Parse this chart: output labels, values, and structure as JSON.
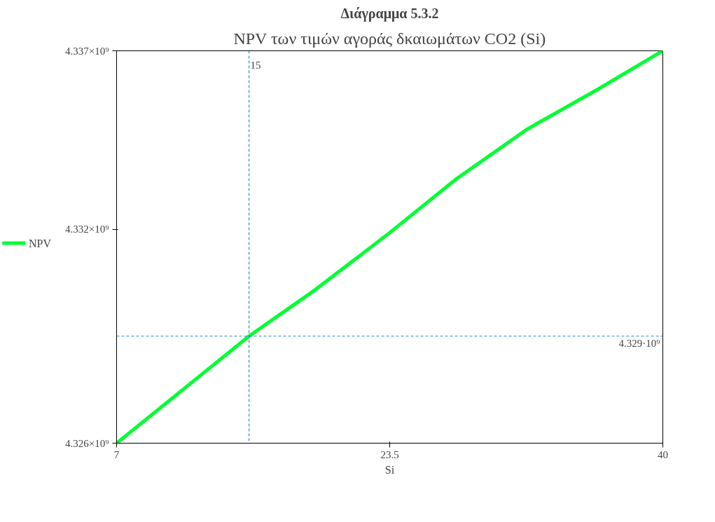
{
  "chart_data": {
    "type": "line",
    "title": "Διάγραμμα 5.3.2",
    "subtitle": "NPV των τιμών αγοράς δκαιωμάτων CO2 (Si)",
    "xlabel": "Si",
    "xlim": [
      7,
      40
    ],
    "xticks": [
      7,
      23.5,
      40
    ],
    "ylim": [
      4326000000,
      4337000000
    ],
    "yticks": [
      {
        "value": 4326000000,
        "label": "4.326×10⁹"
      },
      {
        "value": 4332000000,
        "label": "4.332×10⁹"
      },
      {
        "value": 4337000000,
        "label": "4.337×10⁹"
      }
    ],
    "series": [
      {
        "name": "NPV",
        "color": "#00ff33",
        "x": [
          7,
          11,
          15,
          19,
          23.5,
          27.5,
          31.8,
          36,
          40
        ],
        "values": [
          4326000000,
          4327500000,
          4329000000,
          4330300000,
          4331900000,
          4333400000,
          4334800000,
          4335900000,
          4337000000
        ]
      }
    ],
    "ref_lines": [
      {
        "axis": "x",
        "value": 15,
        "label": "15",
        "color": "#1f8fd0",
        "line_style": "dashed"
      },
      {
        "axis": "y",
        "value": 4329000000,
        "label": "4.329·10⁹",
        "color": "#1f8fd0",
        "line_style": "dashed"
      }
    ],
    "grid": false,
    "legend": "left",
    "line_style": "solid"
  }
}
